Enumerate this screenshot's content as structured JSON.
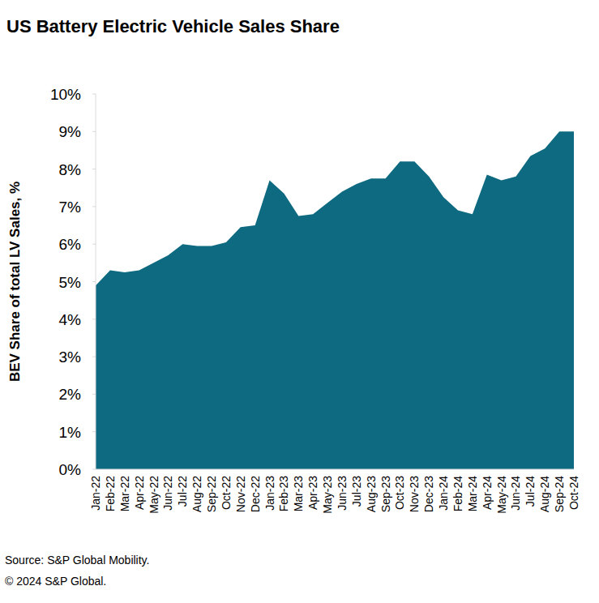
{
  "chart_data": {
    "type": "area",
    "title": "US Battery Electric Vehicle Sales Share",
    "y_label": "BEV Share of total LV Sales, %",
    "annotations": [
      "Source: S&P Global Mobility.",
      "© 2024 S&P Global."
    ],
    "categories": [
      "Jan-22",
      "Feb-22",
      "Mar-22",
      "Apr-22",
      "May-22",
      "Jun-22",
      "Jul-22",
      "Aug-22",
      "Sep-22",
      "Oct-22",
      "Nov-22",
      "Dec-22",
      "Jan-23",
      "Feb-23",
      "Mar-23",
      "Apr-23",
      "May-23",
      "Jun-23",
      "Jul-23",
      "Aug-23",
      "Sep-23",
      "Oct-23",
      "Nov-23",
      "Dec-23",
      "Jan-24",
      "Feb-24",
      "Mar-24",
      "Apr-24",
      "May-24",
      "Jun-24",
      "Jul-24",
      "Aug-24",
      "Sep-24",
      "Oct-24"
    ],
    "values": [
      4.9,
      5.3,
      5.25,
      5.3,
      5.5,
      5.7,
      6.0,
      5.95,
      5.95,
      6.05,
      6.45,
      6.5,
      7.7,
      7.35,
      6.75,
      6.8,
      7.1,
      7.4,
      7.6,
      7.75,
      7.75,
      8.2,
      8.2,
      7.8,
      7.25,
      6.9,
      6.8,
      7.85,
      7.7,
      7.8,
      8.35,
      8.55,
      9.0,
      9.0
    ],
    "color": "#0e6a80",
    "ylim": [
      0,
      10
    ],
    "yticks": [
      {
        "value": 0,
        "label": "0%"
      },
      {
        "value": 1,
        "label": "1%"
      },
      {
        "value": 2,
        "label": "2%"
      },
      {
        "value": 3,
        "label": "3%"
      },
      {
        "value": 4,
        "label": "4%"
      },
      {
        "value": 5,
        "label": "5%"
      },
      {
        "value": 6,
        "label": "6%"
      },
      {
        "value": 7,
        "label": "7%"
      },
      {
        "value": 8,
        "label": "8%"
      },
      {
        "value": 9,
        "label": "9%"
      },
      {
        "value": 10,
        "label": "10%"
      }
    ],
    "grid": false
  }
}
